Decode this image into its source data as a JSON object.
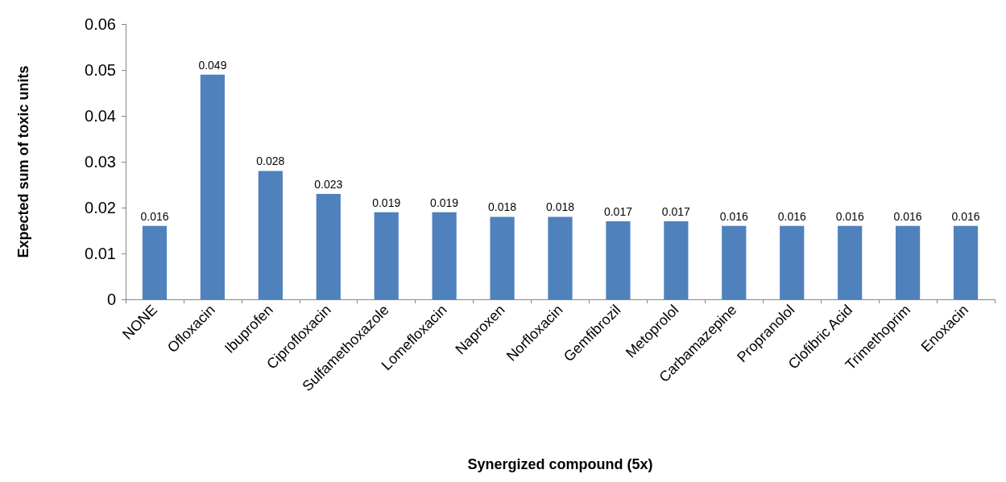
{
  "chart_data": {
    "type": "bar",
    "xlabel": "Synergized compound (5x)",
    "ylabel": "Expected sum of toxic units",
    "categories": [
      "NONE",
      "Ofloxacin",
      "Ibuprofen",
      "Ciprofloxacin",
      "Sulfamethoxazole",
      "Lomefloxacin",
      "Naproxen",
      "Norfloxacin",
      "Gemfibrozil",
      "Metoprolol",
      "Carbamazepine",
      "Propranolol",
      "Clofibric Acid",
      "Trimethoprim",
      "Enoxacin"
    ],
    "values": [
      0.016,
      0.049,
      0.028,
      0.023,
      0.019,
      0.019,
      0.018,
      0.018,
      0.017,
      0.017,
      0.016,
      0.016,
      0.016,
      0.016,
      0.016
    ],
    "color": "#4f81bd",
    "ylim": [
      0,
      0.06
    ],
    "yticks": [
      0,
      0.01,
      0.02,
      0.03,
      0.04,
      0.05,
      0.06
    ],
    "data_labels": true,
    "grid": false
  }
}
